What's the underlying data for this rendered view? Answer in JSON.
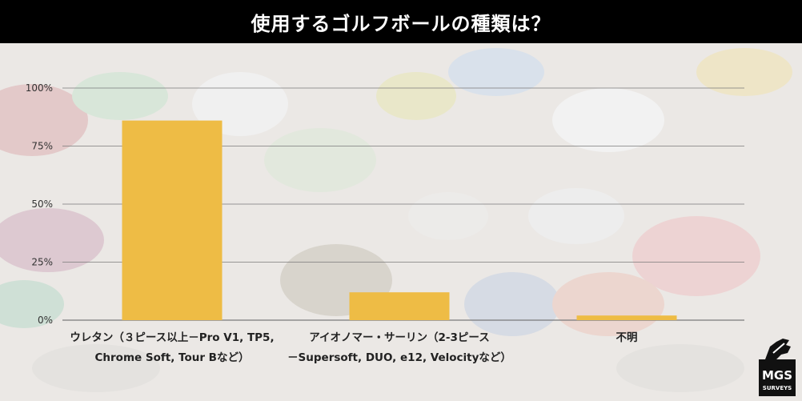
{
  "header": {
    "title": "使用するゴルフボールの種類は？"
  },
  "logo": {
    "line1": "MGS",
    "line2": "SURVEYS"
  },
  "colors": {
    "bar": "#eebc45",
    "header_bg": "#000000",
    "grid": "#7a7a7a"
  },
  "chart_data": {
    "type": "bar",
    "title": "使用するゴルフボールの種類は？",
    "xlabel": "",
    "ylabel": "",
    "ylim": [
      0,
      100
    ],
    "yticks": [
      "0%",
      "25%",
      "50%",
      "75%",
      "100%"
    ],
    "ytick_values": [
      0,
      25,
      50,
      75,
      100
    ],
    "grid": true,
    "categories": [
      [
        "ウレタン（３ピース以上－Pro V1, TP5,",
        "Chrome Soft, Tour Bなど）"
      ],
      [
        "アイオノマー・サーリン（2-3ピース",
        "－Supersoft, DUO, e12, Velocityなど）"
      ],
      [
        "不明"
      ]
    ],
    "values": [
      86,
      12,
      2
    ]
  }
}
